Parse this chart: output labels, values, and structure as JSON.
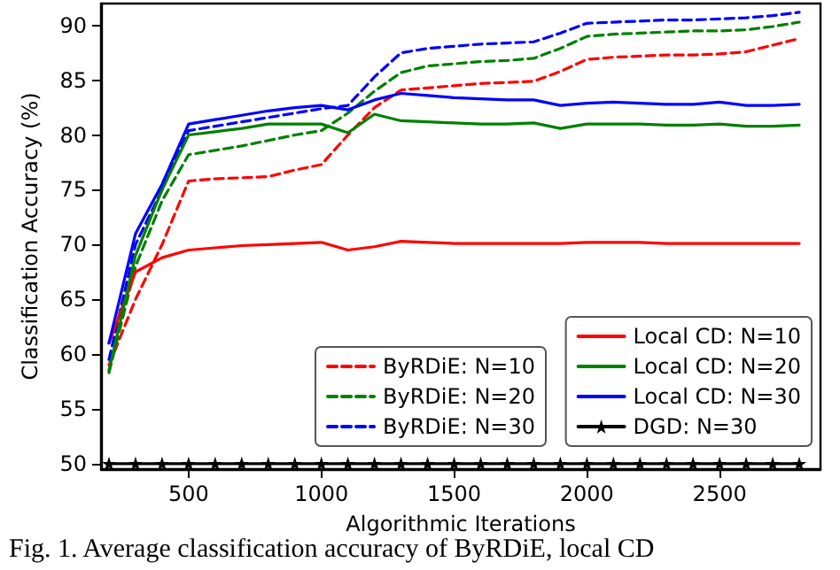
{
  "chart_data": {
    "type": "line",
    "xlabel": "Algorithmic Iterations",
    "ylabel": "Classification Accuracy (%)",
    "x": [
      200,
      300,
      400,
      500,
      600,
      700,
      800,
      900,
      1000,
      1100,
      1200,
      1300,
      1400,
      1500,
      1600,
      1700,
      1800,
      1900,
      2000,
      2100,
      2200,
      2300,
      2400,
      2500,
      2600,
      2700,
      2800
    ],
    "xlim": [
      170,
      2880
    ],
    "xticks": [
      500,
      1000,
      1500,
      2000,
      2500
    ],
    "ylim": [
      49.5,
      92
    ],
    "yticks": [
      50,
      55,
      60,
      65,
      70,
      75,
      80,
      85,
      90
    ],
    "grid": false,
    "legend": "bottom right",
    "marker": "none",
    "annotations": [
      "Fig. 1. Average classification accuracy of ByRDiE, local CD"
    ],
    "series": [
      {
        "name": "ByRDiE: N=10",
        "color": "#ff0000",
        "line_style": "dashed",
        "values": [
          59,
          65,
          70,
          75.8,
          76,
          76.1,
          76.2,
          76.8,
          77.3,
          80,
          82.5,
          84.1,
          84.3,
          84.5,
          84.7,
          84.8,
          84.9,
          85.8,
          86.9,
          87.1,
          87.2,
          87.3,
          87.3,
          87.4,
          87.6,
          88.2,
          88.8
        ]
      },
      {
        "name": "ByRDiE: N=20",
        "color": "#008000",
        "line_style": "dashed",
        "values": [
          58.3,
          68,
          74,
          78.2,
          78.6,
          79,
          79.5,
          80,
          80.4,
          82,
          84,
          85.7,
          86.3,
          86.5,
          86.7,
          86.8,
          87,
          87.9,
          89,
          89.2,
          89.3,
          89.4,
          89.5,
          89.5,
          89.6,
          89.9,
          90.3
        ]
      },
      {
        "name": "ByRDiE: N=30",
        "color": "#0000ff",
        "line_style": "dashed",
        "values": [
          59.5,
          70,
          75,
          80.4,
          80.8,
          81.2,
          81.6,
          82,
          82.4,
          82.7,
          85.3,
          87.5,
          87.9,
          88.1,
          88.3,
          88.4,
          88.5,
          89.3,
          90.2,
          90.3,
          90.4,
          90.5,
          90.5,
          90.6,
          90.7,
          90.9,
          91.2
        ]
      },
      {
        "name": "Local CD: N=10",
        "color": "#ff0000",
        "line_style": "solid",
        "values": [
          61,
          67.5,
          68.8,
          69.5,
          69.7,
          69.9,
          70,
          70.1,
          70.2,
          69.5,
          69.8,
          70.3,
          70.2,
          70.1,
          70.1,
          70.1,
          70.1,
          70.1,
          70.2,
          70.2,
          70.2,
          70.1,
          70.1,
          70.1,
          70.1,
          70.1,
          70.1
        ]
      },
      {
        "name": "Local CD: N=20",
        "color": "#008000",
        "line_style": "solid",
        "values": [
          58.5,
          69,
          75,
          80,
          80.3,
          80.6,
          81,
          81,
          81,
          80.2,
          81.9,
          81.3,
          81.2,
          81.1,
          81,
          81,
          81.1,
          80.6,
          81,
          81,
          81,
          80.9,
          80.9,
          81,
          80.8,
          80.8,
          80.9
        ]
      },
      {
        "name": "Local CD: N=30",
        "color": "#0000ff",
        "line_style": "solid",
        "values": [
          61,
          71,
          75.5,
          81,
          81.4,
          81.8,
          82.2,
          82.5,
          82.7,
          82.3,
          83.2,
          83.8,
          83.6,
          83.4,
          83.3,
          83.2,
          83.2,
          82.7,
          82.9,
          83,
          82.9,
          82.8,
          82.8,
          83,
          82.7,
          82.7,
          82.8
        ]
      },
      {
        "name": "DGD: N=30",
        "color": "#000000",
        "line_style": "solid",
        "marker": "star",
        "values": [
          50,
          50,
          50,
          50,
          50,
          50,
          50,
          50,
          50,
          50,
          50,
          50,
          50,
          50,
          50,
          50,
          50,
          50,
          50,
          50,
          50,
          50,
          50,
          50,
          50,
          50,
          50
        ]
      }
    ]
  }
}
